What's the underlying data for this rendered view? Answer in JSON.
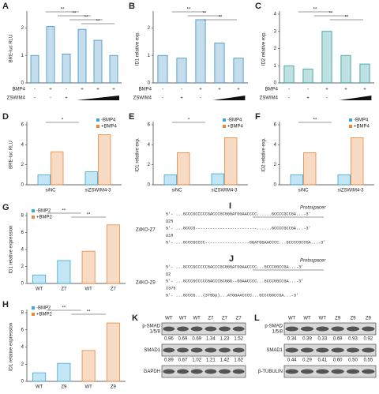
{
  "chart_data": [
    {
      "type": "bar",
      "panel": "A",
      "ylabel": "BRE-luc RLU",
      "values": [
        1.0,
        2.05,
        1.05,
        1.95,
        1.55,
        1.0
      ],
      "color": "#3a8fc0",
      "ylim": [
        0,
        2.5
      ],
      "yticks": [
        0,
        1,
        2
      ],
      "conditions": [
        {
          "name": "BMP4",
          "values": [
            "-",
            "+",
            "-",
            "+",
            "+",
            "+"
          ]
        },
        {
          "name": "ZSWIM4",
          "values": [
            "-",
            "-",
            "+",
            null,
            null,
            null
          ]
        }
      ],
      "annotations": [
        "**",
        "**",
        "**",
        "**"
      ]
    },
    {
      "type": "bar",
      "panel": "B",
      "ylabel": "ID1 relative exp.",
      "values": [
        1.0,
        0.9,
        2.3,
        1.45,
        0.9
      ],
      "color": "#3a8fc0",
      "ylim": [
        0,
        2.5
      ],
      "yticks": [
        0,
        1,
        2
      ],
      "conditions": [
        {
          "name": "BMP4",
          "values": [
            "-",
            "-",
            "+",
            "+",
            "+"
          ]
        },
        {
          "name": "ZSWIM4",
          "values": [
            "-",
            "+",
            "-",
            null,
            null
          ]
        }
      ],
      "annotations": [
        "**",
        "**",
        "**"
      ]
    },
    {
      "type": "bar",
      "panel": "C",
      "ylabel": "ID2 relative exp.",
      "values": [
        1.0,
        0.8,
        3.0,
        1.6,
        1.1
      ],
      "color": "#2a9d9a",
      "ylim": [
        0,
        4
      ],
      "yticks": [
        0,
        1,
        2,
        3,
        4
      ],
      "conditions": [
        {
          "name": "BMP4",
          "values": [
            "-",
            "-",
            "+",
            "+",
            "+"
          ]
        },
        {
          "name": "ZSWIM4",
          "values": [
            "-",
            "+",
            "-",
            null,
            null
          ]
        }
      ],
      "annotations": [
        "**",
        "**",
        "**"
      ]
    },
    {
      "type": "bar",
      "panel": "D",
      "ylabel": "BRE-luc RLU",
      "categories": [
        "siNC",
        "siZSWIM4-3"
      ],
      "legend": "upper right",
      "series": [
        {
          "name": "-BMP4",
          "color": "#3aa8d8",
          "values": [
            1.0,
            1.3
          ]
        },
        {
          "name": "+BMP4",
          "color": "#e8883a",
          "values": [
            3.3,
            5.0
          ]
        }
      ],
      "ylim": [
        0,
        6
      ],
      "yticks": [
        0,
        2,
        4,
        6
      ],
      "annotations": [
        "*"
      ]
    },
    {
      "type": "bar",
      "panel": "E",
      "ylabel": "ID1 relative exp.",
      "categories": [
        "siNC",
        "siZSWIM4-3"
      ],
      "legend": "upper right",
      "series": [
        {
          "name": "-BMP4",
          "color": "#3aa8d8",
          "values": [
            1.0,
            1.1
          ]
        },
        {
          "name": "+BMP4",
          "color": "#e8883a",
          "values": [
            3.2,
            4.7
          ]
        }
      ],
      "ylim": [
        0,
        6
      ],
      "yticks": [
        0,
        2,
        4,
        6
      ],
      "annotations": [
        "*"
      ]
    },
    {
      "type": "bar",
      "panel": "F",
      "ylabel": "ID2 relative exp.",
      "categories": [
        "siNC",
        "siZSWIM4-3"
      ],
      "legend": "upper right",
      "series": [
        {
          "name": "-BMP4",
          "color": "#3aa8d8",
          "values": [
            1.0,
            1.0
          ]
        },
        {
          "name": "+BMP4",
          "color": "#e8883a",
          "values": [
            3.2,
            4.7
          ]
        }
      ],
      "ylim": [
        0,
        6
      ],
      "yticks": [
        0,
        2,
        4,
        6
      ],
      "annotations": [
        "**"
      ]
    },
    {
      "type": "bar",
      "panel": "G",
      "ylabel": "ID1 relative expression",
      "categories": [
        "WT",
        "Z7",
        "WT",
        "Z7"
      ],
      "legend": "upper left",
      "series": [
        {
          "name": "-BMP2",
          "color": "#3aa8d8",
          "values": [
            1.0,
            2.7,
            null,
            null
          ]
        },
        {
          "name": "+BMP2",
          "color": "#e8883a",
          "values": [
            null,
            null,
            3.8,
            6.9
          ]
        }
      ],
      "ylim": [
        0,
        8
      ],
      "yticks": [
        0,
        2,
        4,
        6,
        8
      ],
      "annotations": [
        "**",
        "**"
      ]
    },
    {
      "type": "bar",
      "panel": "H",
      "ylabel": "ID1 relative expression",
      "categories": [
        "WT",
        "Z9",
        "WT",
        "Z9"
      ],
      "legend": "upper left",
      "series": [
        {
          "name": "-BMP2",
          "color": "#3aa8d8",
          "values": [
            1.0,
            2.1,
            null,
            null
          ]
        },
        {
          "name": "+BMP2",
          "color": "#e8883a",
          "values": [
            null,
            null,
            3.6,
            6.8
          ]
        }
      ],
      "ylim": [
        0,
        8
      ],
      "yticks": [
        0,
        2,
        4,
        6,
        8
      ],
      "annotations": [
        "**",
        "**"
      ]
    }
  ],
  "sequences": [
    {
      "panel": "I",
      "title": "Protospacer",
      "label": "Z4KO-Z7",
      "lines": [
        "5'- ...GCCCGCCCCCGACCCGCGGGATGGAACCCC......GCCCCGCCGA...-3'",
        "Δ25",
        "5'- ...GCCCG-------------------------......GCCCCGCCGA...-3'",
        "Δ18",
        "5'- ...GCCCGCCCC------------------GGATGGAACCCC...GCCCCGCCGA...-3'"
      ]
    },
    {
      "panel": "J",
      "title": "Protospacer",
      "label": "Z4KO-Z9",
      "lines": [
        "5'- ...GCCCGCCCCCGACCCGCGGGATGGAACCCC...GCCCGGCCGA...-3'",
        "Δ2",
        "5'- ...GCCCGCCCCCGACCCGCGGG--GGAACCCC...GCCCGGCCGA...-3'",
        "I375",
        "5'- ...GCCCG...(375bp)...ATGGAACCCC...GCCCGGCCGA...-3'"
      ]
    }
  ],
  "blots": [
    {
      "panel": "K",
      "lanes": [
        "WT",
        "WT",
        "WT",
        "Z7",
        "Z7",
        "Z7"
      ],
      "rows": [
        {
          "label": [
            "p-SMAD",
            "1/5/8"
          ],
          "quant": [
            "0.96",
            "0.69",
            "0.69",
            "1.34",
            "1.23",
            "1.52"
          ]
        },
        {
          "label": [
            "SMAD1"
          ],
          "quant": [
            "0.89",
            "0.67",
            "1.02",
            "1.21",
            "1.42",
            "1.62"
          ]
        },
        {
          "label": [
            "GAPDH"
          ]
        }
      ]
    },
    {
      "panel": "L",
      "lanes": [
        "WT",
        "WT",
        "WT",
        "Z9",
        "Z9",
        "Z9"
      ],
      "rows": [
        {
          "label": [
            "p-SMAD",
            "1/5/8"
          ],
          "quant": [
            "0.34",
            "0.39",
            "0.33",
            "0.69",
            "0.93",
            "0.92"
          ]
        },
        {
          "label": [
            "SMAD1"
          ],
          "quant": [
            "0.44",
            "0.29",
            "0.41",
            "0.60",
            "0.50",
            "0.55"
          ]
        },
        {
          "label": [
            "β-TUBULIN"
          ]
        }
      ]
    }
  ]
}
